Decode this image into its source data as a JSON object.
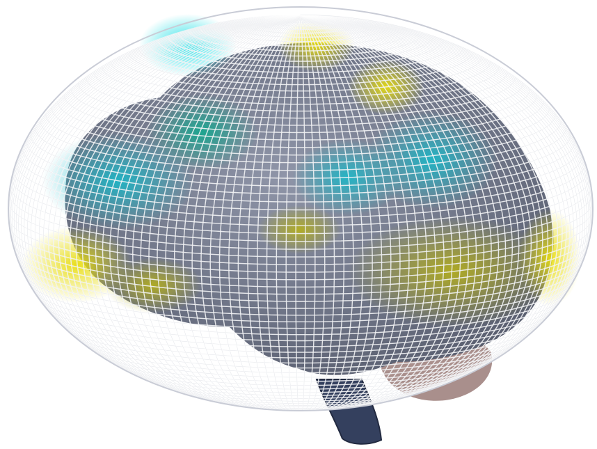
{
  "image": {
    "subject": "3d-brain-visualization",
    "colors": {
      "background": "#ffffff",
      "brain": "#6e7384",
      "brain_light": "#8a90a3",
      "cerebellum": "#a98f8c",
      "brainstem": "#34405e",
      "mesh_lines": "#ffffff",
      "mesh_outline": "#c9ccd6",
      "cyan_region": "#19c9d2",
      "teal_region": "#1ea28e",
      "yellow_region": "#d8cf1a",
      "olive_region": "#a6a51e"
    }
  }
}
